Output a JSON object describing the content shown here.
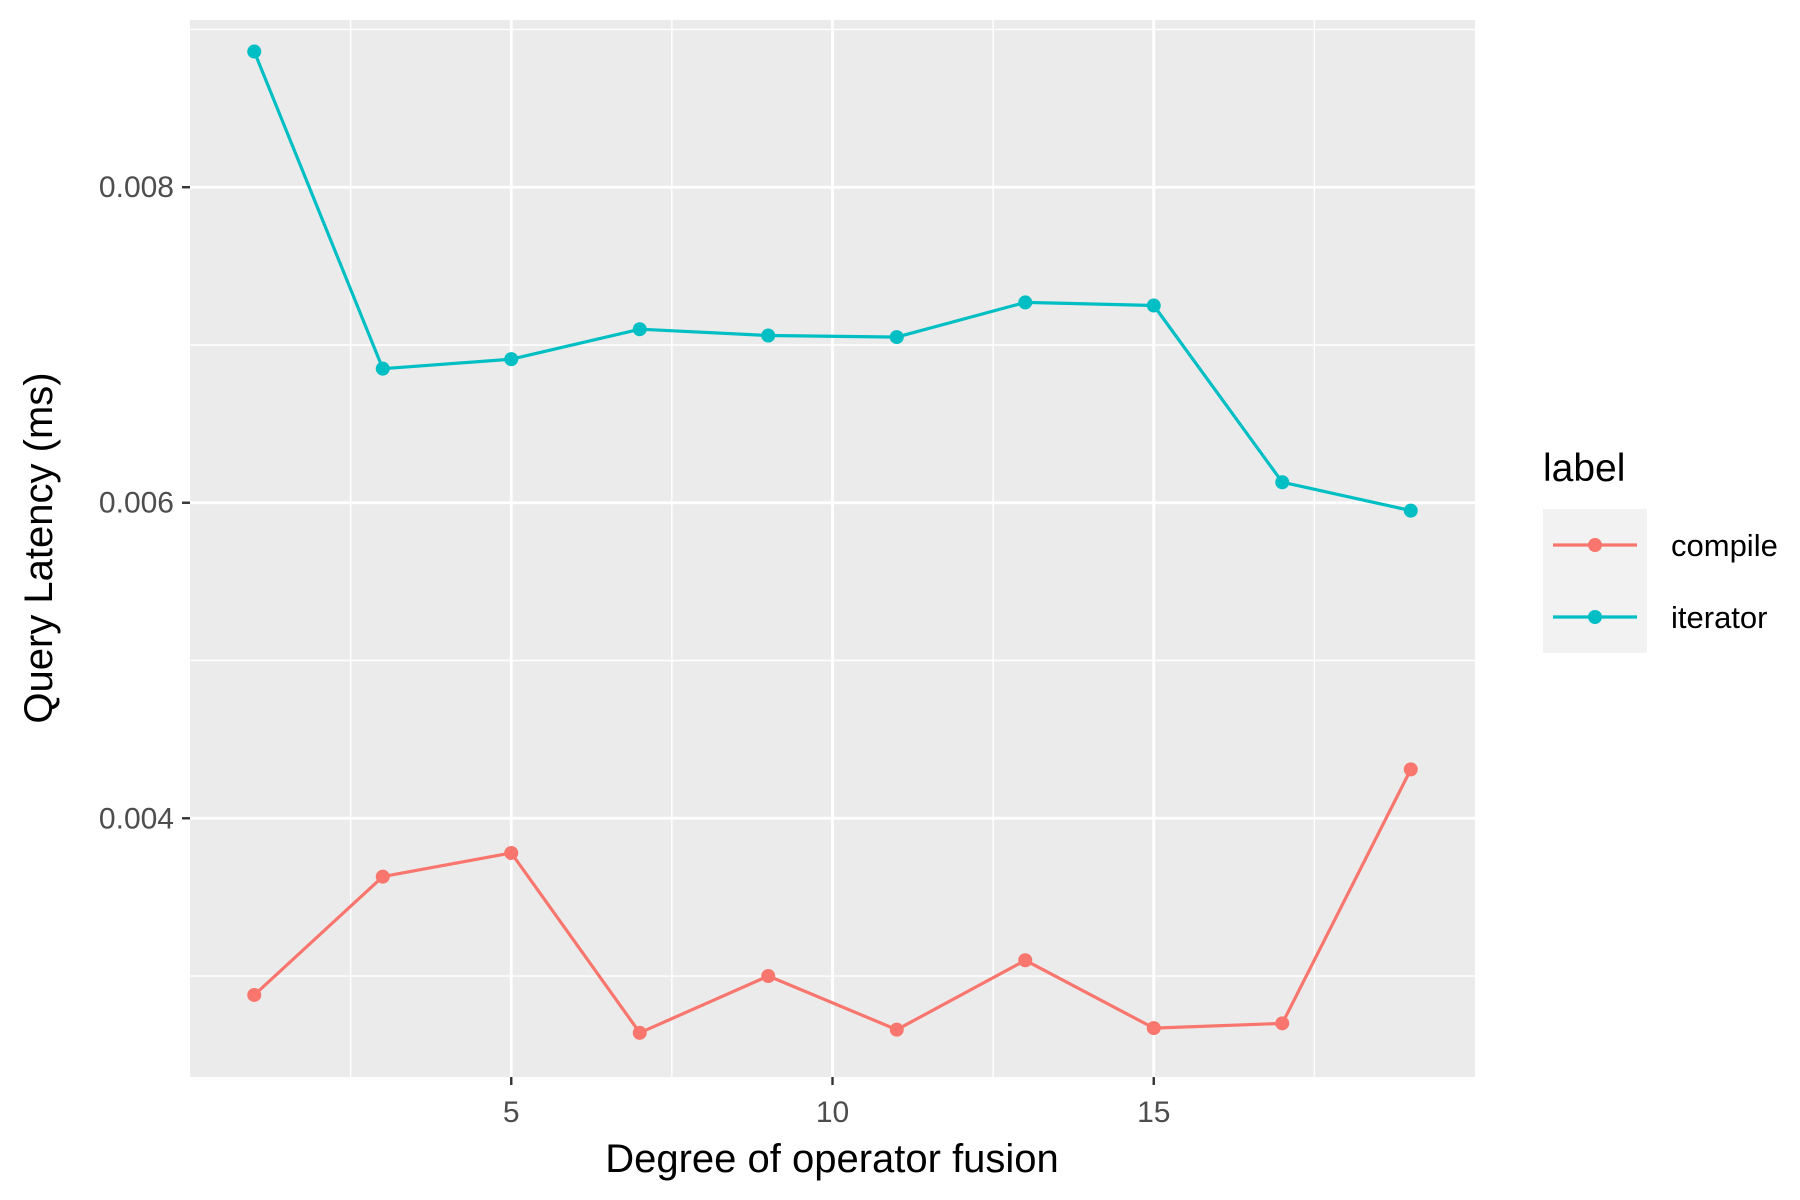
{
  "chart_data": {
    "type": "line",
    "title": "",
    "xlabel": "Degree of operator fusion",
    "ylabel": "Query Latency (ms)",
    "xlim": [
      0,
      20
    ],
    "ylim": [
      0.00236,
      0.00906
    ],
    "x_ticks": [
      5,
      10,
      15
    ],
    "x_tick_labels": [
      "5",
      "10",
      "15"
    ],
    "y_ticks": [
      0.004,
      0.006,
      0.008
    ],
    "y_tick_labels": [
      "0.004",
      "0.006",
      "0.008"
    ],
    "grid": true,
    "legend": {
      "title": "label",
      "position": "right"
    },
    "x": [
      1,
      3,
      5,
      7,
      9,
      11,
      13,
      15,
      17,
      19
    ],
    "series": [
      {
        "name": "compile",
        "color": "#F8766D",
        "values": [
          0.00288,
          0.00363,
          0.00378,
          0.00264,
          0.003,
          0.00266,
          0.0031,
          0.00267,
          0.0027,
          0.00431
        ]
      },
      {
        "name": "iterator",
        "color": "#00BFC4",
        "values": [
          0.00886,
          0.00685,
          0.00691,
          0.0071,
          0.00706,
          0.00705,
          0.00727,
          0.00725,
          0.00613,
          0.00595
        ]
      }
    ]
  }
}
